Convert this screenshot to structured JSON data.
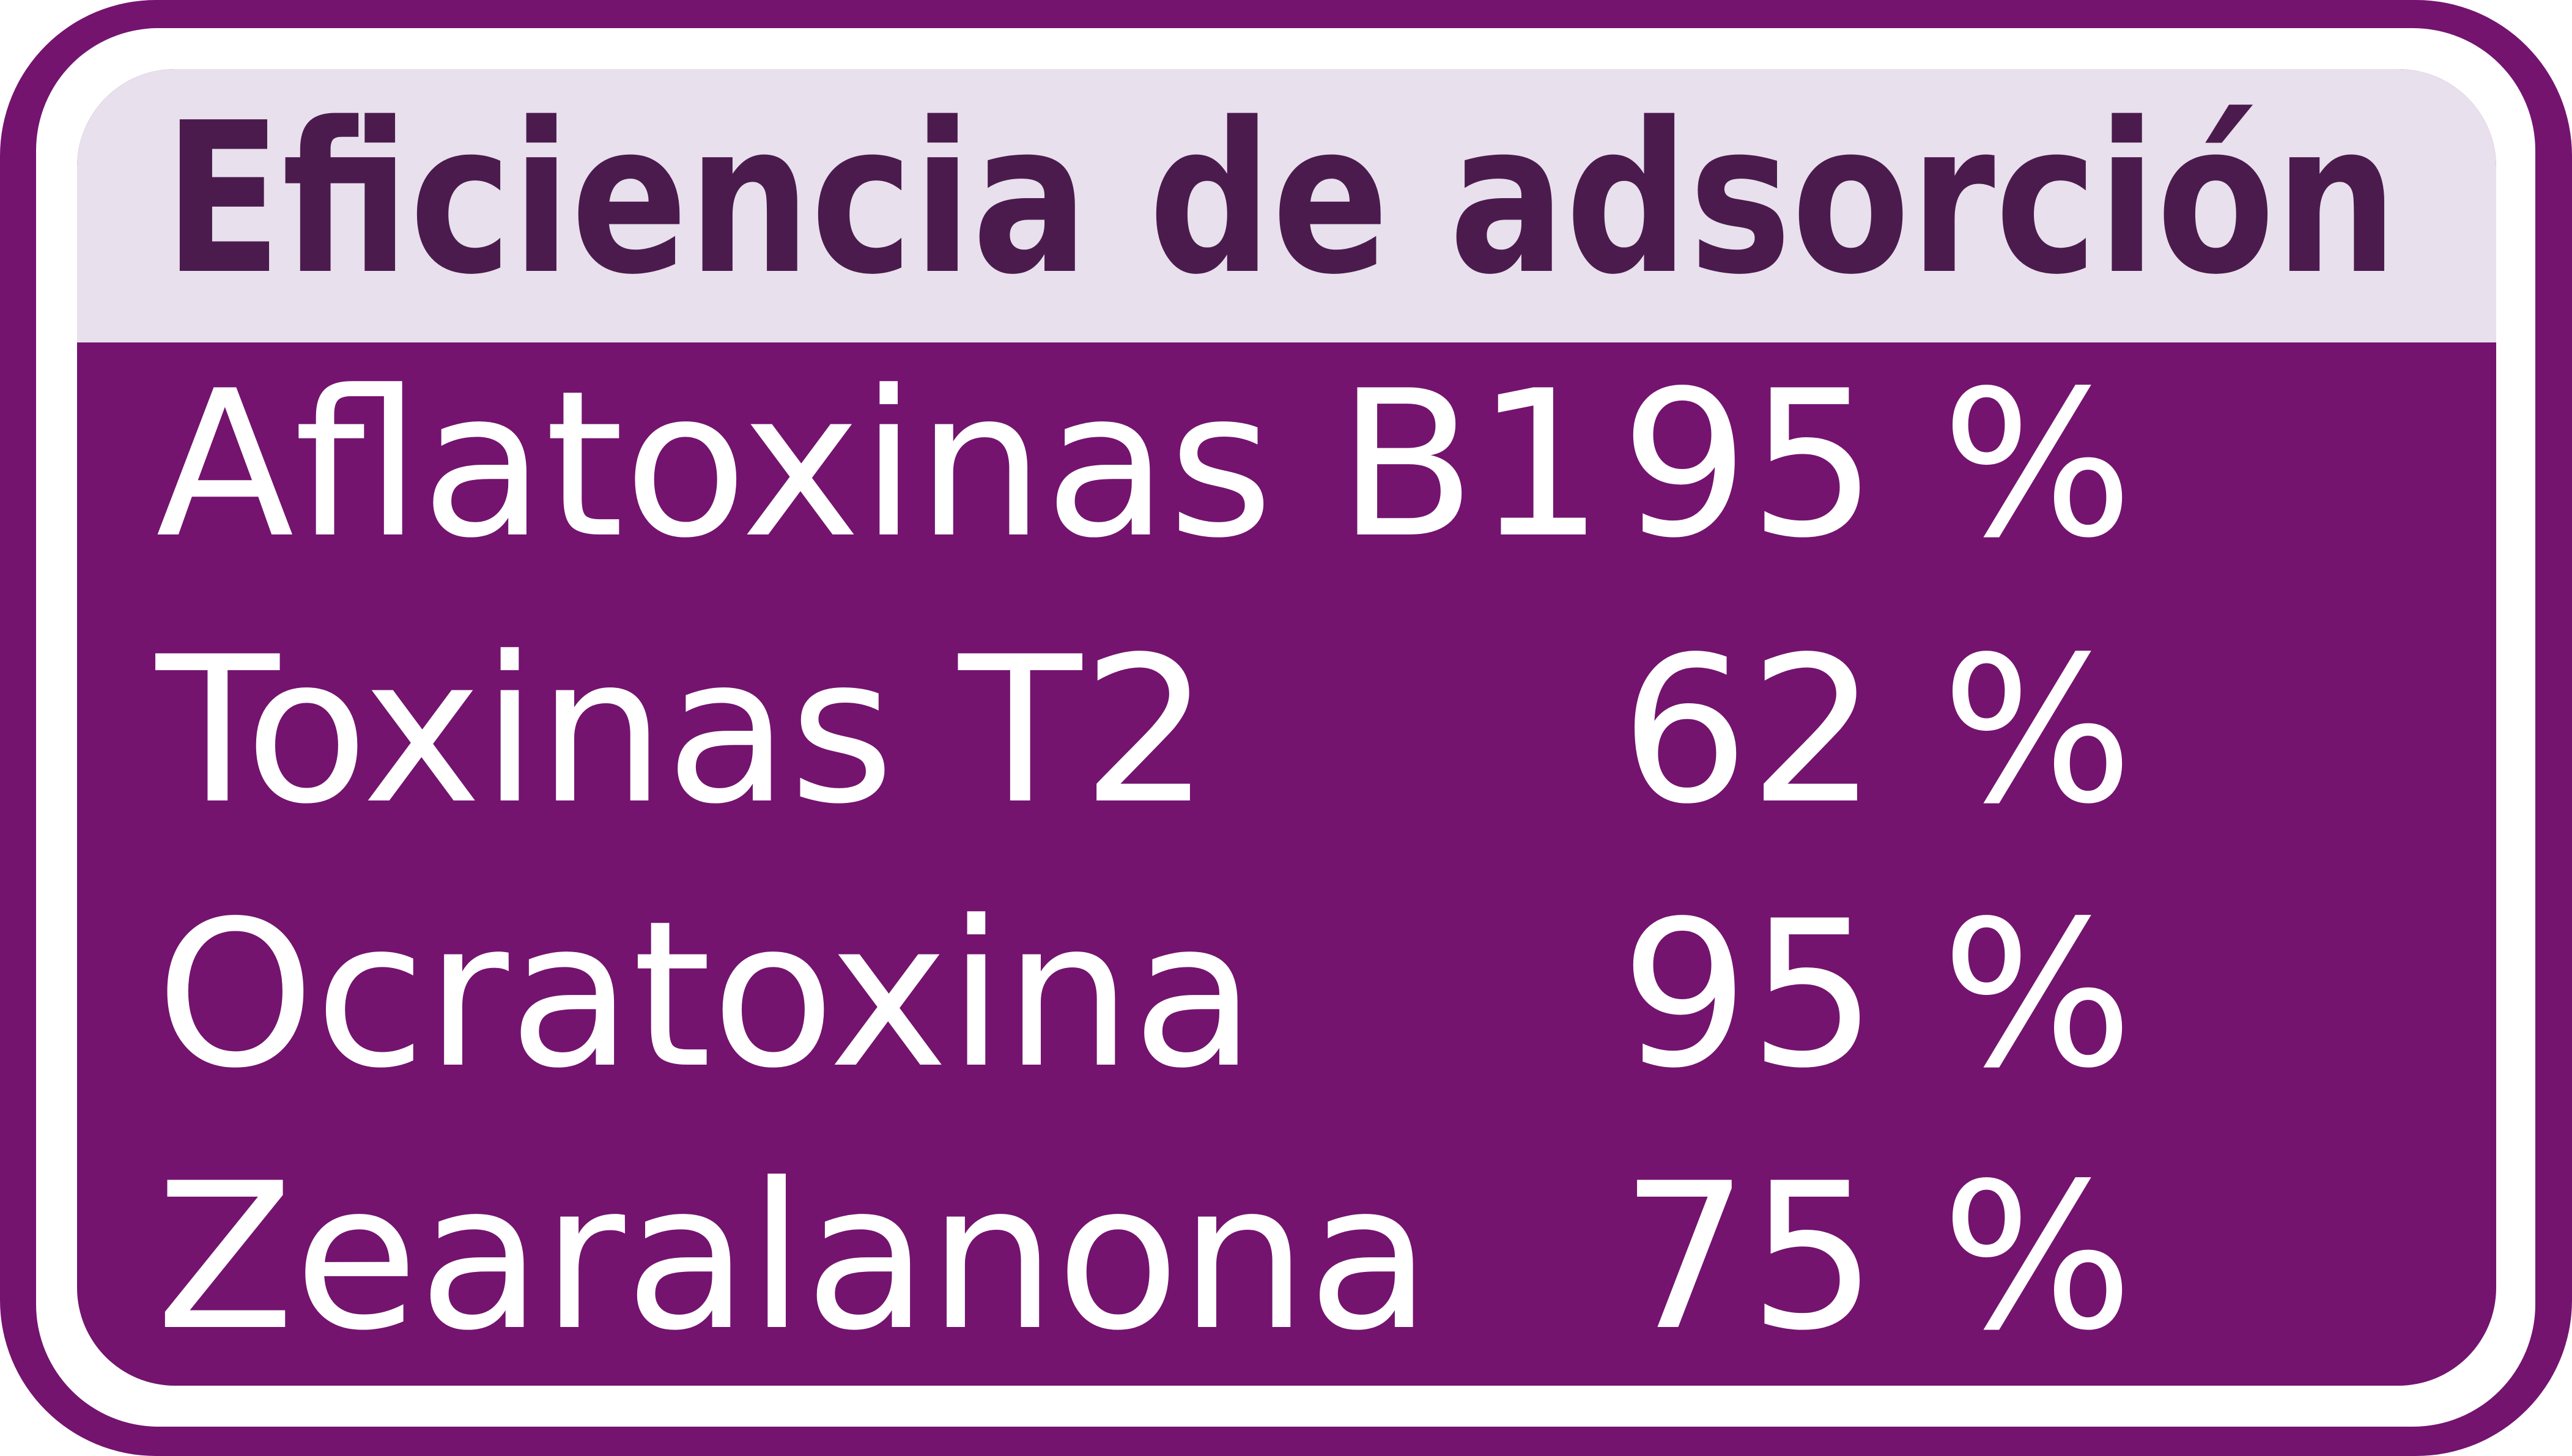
{
  "header": {
    "title": "Eficiencia de adsorción"
  },
  "table": {
    "rows": [
      [
        "Aflatoxinas B1",
        "95 %"
      ],
      [
        "Toxinas T2",
        "62 %"
      ],
      [
        "Ocratoxina",
        "95 %"
      ],
      [
        "Zearalanona",
        "75 %"
      ]
    ]
  }
}
